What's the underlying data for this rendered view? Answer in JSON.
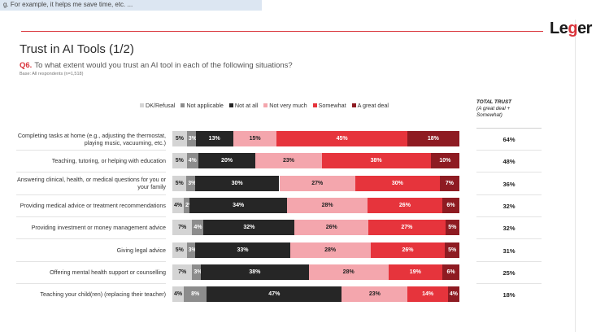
{
  "top_strip": "g. For example, it helps me save time, etc. ...",
  "logo": {
    "text_before": "Le",
    "text_accent": "g",
    "text_after": "er"
  },
  "page_title": "Trust in AI Tools (1/2)",
  "question": {
    "number": "Q6.",
    "text": "To what extent would you trust an AI tool in each of the following situations?"
  },
  "base": "Base: All respondents (n=1,518)",
  "total_header": {
    "line1": "TOTAL TRUST",
    "line2": "(A great deal +",
    "line3": "Somewhat)"
  },
  "colors": {
    "dk_refusal": "#d4d4d4",
    "not_applicable": "#8c8c8c",
    "not_at_all": "#262626",
    "not_very_much": "#f4a6ad",
    "somewhat": "#e6343c",
    "a_great_deal": "#8e1b22",
    "accent": "#d9333a"
  },
  "chart_data": {
    "type": "bar",
    "orientation": "horizontal",
    "stacked": true,
    "xlim": [
      0,
      100
    ],
    "legend_position": "top",
    "categories": [
      "Completing tasks at home (e.g., adjusting the thermostat, playing music, vacuuming, etc.)",
      "Teaching, tutoring, or helping with education",
      "Answering clinical, health, or medical questions for you or your family",
      "Providing medical advice or treatment recommendations",
      "Providing investment or money management advice",
      "Giving legal advice",
      "Offering mental health support or counselling",
      "Teaching your child(ren) (replacing their teacher)"
    ],
    "series": [
      {
        "key": "dk_refusal",
        "name": "DK/Refusal",
        "values": [
          5,
          5,
          5,
          4,
          7,
          5,
          7,
          4
        ]
      },
      {
        "key": "not_applicable",
        "name": "Not applicable",
        "values": [
          3,
          4,
          3,
          2,
          4,
          3,
          3,
          8
        ]
      },
      {
        "key": "not_at_all",
        "name": "Not at all",
        "values": [
          13,
          20,
          30,
          34,
          32,
          33,
          38,
          47
        ]
      },
      {
        "key": "not_very_much",
        "name": "Not very much",
        "values": [
          15,
          23,
          27,
          28,
          26,
          28,
          28,
          23
        ]
      },
      {
        "key": "somewhat",
        "name": "Somewhat",
        "values": [
          45,
          38,
          30,
          26,
          27,
          26,
          19,
          14
        ]
      },
      {
        "key": "a_great_deal",
        "name": "A great deal",
        "values": [
          18,
          10,
          7,
          6,
          5,
          5,
          6,
          4
        ]
      }
    ],
    "labels": [
      [
        "5%",
        "3%",
        "13%",
        "15%",
        "45%",
        "18%"
      ],
      [
        "5%",
        "4%",
        "20%",
        "23%",
        "38%",
        "10%"
      ],
      [
        "5%",
        "3%",
        "30%",
        "27%",
        "30%",
        "7%"
      ],
      [
        "4%",
        "2%",
        "34%",
        "28%",
        "26%",
        "6%"
      ],
      [
        "7%",
        "4%",
        "32%",
        "26%",
        "27%",
        "5%"
      ],
      [
        "5%",
        "3%",
        "33%",
        "28%",
        "26%",
        "5%"
      ],
      [
        "7%",
        "3%",
        "38%",
        "28%",
        "19%",
        "6%"
      ],
      [
        "4%",
        "8%",
        "47%",
        "23%",
        "14%",
        "4%"
      ]
    ],
    "total_trust": [
      "64%",
      "48%",
      "36%",
      "32%",
      "32%",
      "31%",
      "25%",
      "18%"
    ]
  }
}
